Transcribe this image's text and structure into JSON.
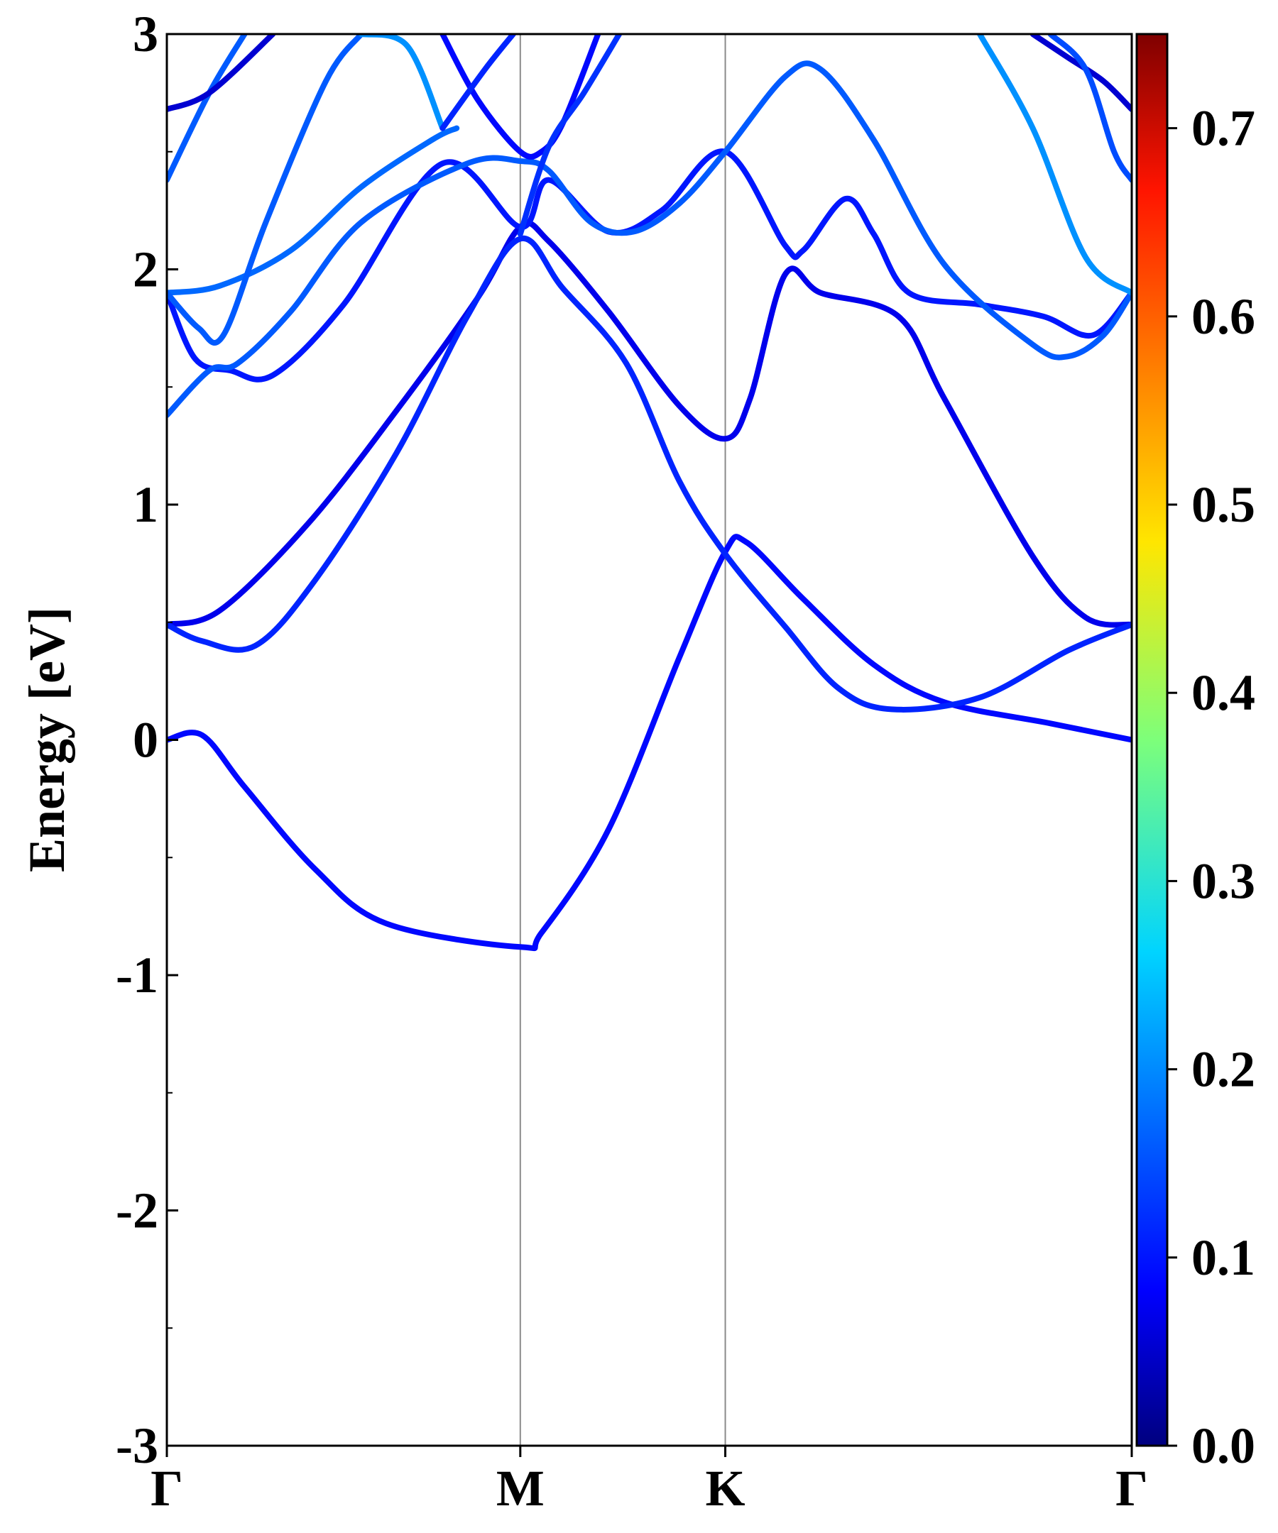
{
  "chart_data": {
    "type": "line",
    "title": "",
    "xlabel": "",
    "ylabel": "Energy [eV]",
    "ylim": [
      -3,
      3
    ],
    "y_ticks": [
      -3,
      -2,
      -1,
      0,
      1,
      2,
      3
    ],
    "y_tick_labels": [
      "-3",
      "-2",
      "-1",
      "0",
      "1",
      "2",
      "3"
    ],
    "xlim": [
      0,
      2.73
    ],
    "x_ticks": [
      0,
      1.0,
      1.58,
      2.73
    ],
    "x_tick_labels": [
      "Γ",
      "M",
      "K",
      "Γ"
    ],
    "k_point_lines": [
      1.0,
      1.58
    ],
    "grid": false,
    "colorbar": {
      "colormap": "jet",
      "range": [
        0.0,
        0.75
      ],
      "ticks": [
        0.0,
        0.1,
        0.2,
        0.3,
        0.4,
        0.5,
        0.6,
        0.7
      ],
      "tick_labels": [
        "0.0",
        "0.1",
        "0.2",
        "0.3",
        "0.4",
        "0.5",
        "0.6",
        "0.7"
      ]
    },
    "series": [
      {
        "weight": 0.1,
        "points": [
          [
            0,
            0
          ],
          [
            0.1,
            0.02
          ],
          [
            0.22,
            -0.2
          ],
          [
            0.42,
            -0.55
          ],
          [
            0.62,
            -0.78
          ],
          [
            1.0,
            -0.88
          ],
          [
            1.06,
            -0.82
          ],
          [
            1.25,
            -0.38
          ],
          [
            1.45,
            0.35
          ],
          [
            1.58,
            0.8
          ],
          [
            1.64,
            0.84
          ],
          [
            1.8,
            0.6
          ],
          [
            2.0,
            0.32
          ],
          [
            2.2,
            0.16
          ],
          [
            2.5,
            0.07
          ],
          [
            2.73,
            0
          ]
        ]
      },
      {
        "weight": 0.08,
        "points": [
          [
            0,
            0.49
          ],
          [
            0.15,
            0.55
          ],
          [
            0.4,
            0.92
          ],
          [
            0.65,
            1.4
          ],
          [
            0.88,
            1.88
          ],
          [
            1.0,
            2.18
          ],
          [
            1.08,
            2.12
          ],
          [
            1.25,
            1.82
          ],
          [
            1.45,
            1.42
          ],
          [
            1.58,
            1.28
          ],
          [
            1.65,
            1.45
          ],
          [
            1.75,
            1.98
          ],
          [
            1.85,
            1.9
          ],
          [
            2.07,
            1.8
          ],
          [
            2.2,
            1.45
          ],
          [
            2.45,
            0.78
          ],
          [
            2.6,
            0.52
          ],
          [
            2.73,
            0.49
          ]
        ]
      },
      {
        "weight": 0.12,
        "points": [
          [
            0,
            0.49
          ],
          [
            0.1,
            0.42
          ],
          [
            0.25,
            0.4
          ],
          [
            0.42,
            0.68
          ],
          [
            0.65,
            1.22
          ],
          [
            0.85,
            1.8
          ],
          [
            1.0,
            2.13
          ],
          [
            1.12,
            1.92
          ],
          [
            1.3,
            1.6
          ],
          [
            1.45,
            1.1
          ],
          [
            1.58,
            0.79
          ],
          [
            1.75,
            0.48
          ],
          [
            1.9,
            0.22
          ],
          [
            2.05,
            0.13
          ],
          [
            2.3,
            0.18
          ],
          [
            2.55,
            0.38
          ],
          [
            2.73,
            0.49
          ]
        ]
      },
      {
        "weight": 0.11,
        "points": [
          [
            0,
            1.9
          ],
          [
            0.08,
            1.62
          ],
          [
            0.18,
            1.57
          ],
          [
            0.3,
            1.55
          ],
          [
            0.5,
            1.85
          ],
          [
            0.78,
            2.45
          ],
          [
            1.0,
            2.18
          ],
          [
            1.08,
            2.38
          ],
          [
            1.25,
            2.16
          ],
          [
            1.4,
            2.25
          ],
          [
            1.58,
            2.5
          ],
          [
            1.75,
            2.1
          ],
          [
            1.8,
            2.08
          ],
          [
            1.92,
            2.3
          ],
          [
            2.0,
            2.15
          ],
          [
            2.1,
            1.9
          ],
          [
            2.3,
            1.85
          ],
          [
            2.48,
            1.8
          ],
          [
            2.62,
            1.72
          ],
          [
            2.73,
            1.9
          ]
        ]
      },
      {
        "weight": 0.16,
        "points": [
          [
            0,
            1.38
          ],
          [
            0.12,
            1.57
          ],
          [
            0.2,
            1.6
          ],
          [
            0.35,
            1.82
          ],
          [
            0.55,
            2.2
          ],
          [
            0.85,
            2.45
          ],
          [
            1.0,
            2.46
          ],
          [
            1.08,
            2.42
          ],
          [
            1.2,
            2.2
          ],
          [
            1.32,
            2.16
          ],
          [
            1.45,
            2.28
          ],
          [
            1.58,
            2.5
          ],
          [
            1.75,
            2.82
          ],
          [
            1.85,
            2.85
          ],
          [
            2.0,
            2.55
          ],
          [
            2.2,
            2.02
          ],
          [
            2.45,
            1.68
          ],
          [
            2.55,
            1.63
          ],
          [
            2.65,
            1.72
          ],
          [
            2.73,
            1.9
          ]
        ]
      },
      {
        "weight": 0.17,
        "points": [
          [
            0,
            1.9
          ],
          [
            0.15,
            1.93
          ],
          [
            0.35,
            2.08
          ],
          [
            0.55,
            2.35
          ],
          [
            0.75,
            2.55
          ],
          [
            0.82,
            2.6
          ]
        ]
      },
      {
        "weight": 0.16,
        "points": [
          [
            0,
            1.9
          ],
          [
            0.09,
            1.75
          ],
          [
            0.16,
            1.72
          ],
          [
            0.28,
            2.2
          ],
          [
            0.45,
            2.8
          ],
          [
            0.55,
            3.0
          ]
        ]
      },
      {
        "weight": 0.2,
        "points": [
          [
            0.55,
            3.0
          ],
          [
            0.68,
            2.95
          ],
          [
            0.78,
            2.6
          ]
        ]
      },
      {
        "weight": 0.2,
        "points": [
          [
            2.3,
            3.0
          ],
          [
            2.45,
            2.6
          ],
          [
            2.6,
            2.05
          ],
          [
            2.73,
            1.9
          ]
        ]
      },
      {
        "weight": 0.16,
        "points": [
          [
            0,
            2.38
          ],
          [
            0.12,
            2.75
          ],
          [
            0.22,
            3.0
          ]
        ]
      },
      {
        "weight": 0.06,
        "points": [
          [
            0,
            2.68
          ],
          [
            0.12,
            2.75
          ],
          [
            0.3,
            3.0
          ]
        ]
      },
      {
        "weight": 0.1,
        "points": [
          [
            0.78,
            3.0
          ],
          [
            0.88,
            2.72
          ],
          [
            1.0,
            2.5
          ],
          [
            1.06,
            2.5
          ],
          [
            1.12,
            2.62
          ],
          [
            1.22,
            3.0
          ]
        ]
      },
      {
        "weight": 0.12,
        "points": [
          [
            0.78,
            2.6
          ],
          [
            0.9,
            2.85
          ],
          [
            0.98,
            3.0
          ]
        ]
      },
      {
        "weight": 0.13,
        "points": [
          [
            1.28,
            3.0
          ],
          [
            1.18,
            2.75
          ],
          [
            1.08,
            2.52
          ],
          [
            1.0,
            2.15
          ]
        ]
      },
      {
        "weight": 0.06,
        "points": [
          [
            2.45,
            3.0
          ],
          [
            2.55,
            2.9
          ],
          [
            2.65,
            2.8
          ],
          [
            2.73,
            2.68
          ]
        ]
      },
      {
        "weight": 0.15,
        "points": [
          [
            2.5,
            3.0
          ],
          [
            2.6,
            2.85
          ],
          [
            2.68,
            2.5
          ],
          [
            2.73,
            2.38
          ]
        ]
      }
    ]
  }
}
